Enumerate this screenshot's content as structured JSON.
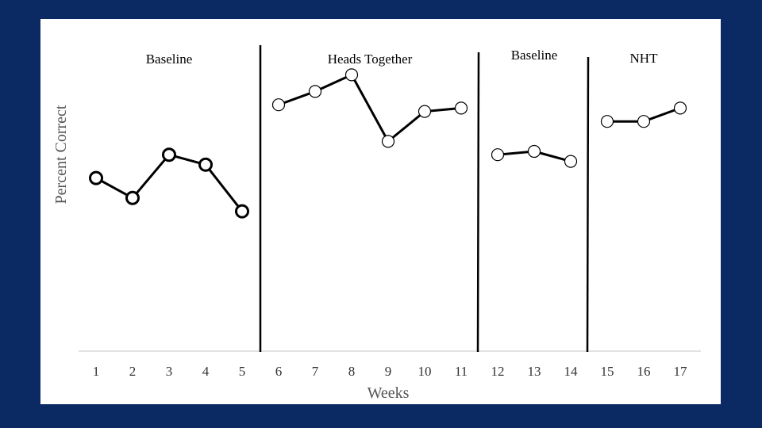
{
  "chart_data": {
    "type": "line",
    "xlabel": "Weeks",
    "ylabel": "Percent Correct",
    "x": [
      1,
      2,
      3,
      4,
      5,
      6,
      7,
      8,
      9,
      10,
      11,
      12,
      13,
      14,
      15,
      16,
      17
    ],
    "ylim": [
      0,
      100
    ],
    "grid": false,
    "legend": "none",
    "phases": [
      {
        "label": "Baseline",
        "weeks": [
          1,
          5
        ]
      },
      {
        "label": "Heads Together",
        "weeks": [
          6,
          11
        ]
      },
      {
        "label": "Baseline",
        "weeks": [
          12,
          14
        ]
      },
      {
        "label": "NHT",
        "weeks": [
          15,
          17
        ]
      }
    ],
    "phase_change_after_weeks": [
      5.5,
      11.5,
      14.5
    ],
    "series": [
      {
        "x": [
          1,
          2,
          3,
          4,
          5
        ],
        "values": [
          52,
          46,
          59,
          56,
          42
        ],
        "marker": "bold-open-circle"
      },
      {
        "x": [
          6,
          7,
          8,
          9,
          10,
          11
        ],
        "values": [
          74,
          78,
          83,
          63,
          72,
          73
        ],
        "marker": "open-circle"
      },
      {
        "x": [
          12,
          13,
          14
        ],
        "values": [
          59,
          60,
          57
        ],
        "marker": "open-circle"
      },
      {
        "x": [
          15,
          16,
          17
        ],
        "values": [
          69,
          69,
          73
        ],
        "marker": "open-circle"
      }
    ]
  },
  "colors": {
    "background": "#0b2a63",
    "panel": "#ffffff",
    "line": "#000000",
    "axis": "#d9d9d9"
  }
}
